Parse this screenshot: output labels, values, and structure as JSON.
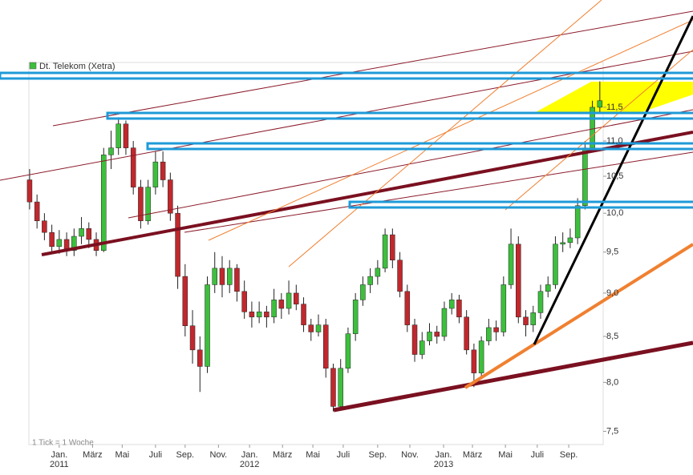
{
  "chart_data": {
    "type": "candlestick",
    "legend": "Dt. Telekom (Xetra)",
    "legend_color": "#3dbf3d",
    "footnote": "1 Tick = 1 Woche",
    "up_color": "#3dbf3d",
    "down_color": "#c0282d",
    "log_scale": true,
    "ylim": [
      7.37,
      12.2
    ],
    "yticks": [
      {
        "value": 7.5,
        "label": "7,5"
      },
      {
        "value": 8,
        "label": "8,0"
      },
      {
        "value": 8.5,
        "label": "8,5"
      },
      {
        "value": 9,
        "label": "9,0"
      },
      {
        "value": 9.5,
        "label": "9,5"
      },
      {
        "value": 10,
        "label": "10,0"
      },
      {
        "value": 10.5,
        "label": "10,5"
      },
      {
        "value": 11,
        "label": "11,0"
      },
      {
        "value": 11.5,
        "label": "11,5"
      }
    ],
    "xlim": [
      -0.2,
      154.9
    ],
    "xticks": [
      {
        "value": 8,
        "label": "Jan."
      },
      {
        "value": 17,
        "label": "März"
      },
      {
        "value": 25,
        "label": "Mai"
      },
      {
        "value": 34,
        "label": "Juli"
      },
      {
        "value": 42,
        "label": "Sep."
      },
      {
        "value": 51,
        "label": "Nov."
      },
      {
        "value": 59.4,
        "label": "Jan."
      },
      {
        "value": 68.3,
        "label": "März"
      },
      {
        "value": 76.5,
        "label": "Mai"
      },
      {
        "value": 84.7,
        "label": "Juli"
      },
      {
        "value": 94,
        "label": "Sep."
      },
      {
        "value": 102.7,
        "label": "Nov."
      },
      {
        "value": 111.8,
        "label": "Jan."
      },
      {
        "value": 119.6,
        "label": "März"
      },
      {
        "value": 128.5,
        "label": "Mai"
      },
      {
        "value": 137.1,
        "label": "Juli"
      },
      {
        "value": 145.6,
        "label": "Sep."
      }
    ],
    "years": [
      {
        "value": 8,
        "label": "2011"
      },
      {
        "value": 59.4,
        "label": "2012"
      },
      {
        "value": 111.8,
        "label": "2013"
      }
    ],
    "x": [
      0,
      2,
      4,
      6,
      8,
      10,
      12,
      14,
      16,
      18,
      20,
      22,
      24,
      26,
      28,
      30,
      32,
      34,
      36,
      38,
      40,
      42,
      44,
      46,
      48,
      50,
      52,
      54,
      56,
      58,
      60,
      62,
      64,
      66,
      68,
      70,
      72,
      74,
      76,
      78,
      80,
      82,
      84,
      86,
      88,
      90,
      92,
      94,
      96,
      98,
      100,
      102,
      104,
      106,
      108,
      110,
      112,
      114,
      116,
      118,
      120,
      122,
      124,
      126,
      128,
      130,
      132,
      134,
      136,
      138,
      140,
      142,
      144,
      146,
      148,
      150,
      152,
      154
    ],
    "ohlc": [
      [
        10.45,
        10.6,
        10.05,
        10.15
      ],
      [
        10.15,
        10.25,
        9.8,
        9.9
      ],
      [
        9.9,
        10.0,
        9.65,
        9.75
      ],
      [
        9.75,
        9.85,
        9.5,
        9.57
      ],
      [
        9.57,
        9.78,
        9.48,
        9.66
      ],
      [
        9.66,
        9.75,
        9.45,
        9.52
      ],
      [
        9.52,
        9.8,
        9.45,
        9.7
      ],
      [
        9.7,
        9.95,
        9.6,
        9.8
      ],
      [
        9.8,
        9.88,
        9.55,
        9.66
      ],
      [
        9.66,
        9.75,
        9.45,
        9.52
      ],
      [
        9.52,
        10.9,
        9.5,
        10.8
      ],
      [
        10.8,
        11.15,
        10.6,
        10.9
      ],
      [
        10.9,
        11.35,
        10.8,
        11.25
      ],
      [
        11.25,
        11.3,
        10.8,
        10.9
      ],
      [
        10.9,
        11.0,
        10.25,
        10.35
      ],
      [
        10.35,
        10.45,
        9.8,
        9.9
      ],
      [
        9.9,
        10.45,
        9.85,
        10.35
      ],
      [
        10.35,
        10.85,
        10.25,
        10.7
      ],
      [
        10.7,
        10.85,
        10.35,
        10.45
      ],
      [
        10.45,
        10.55,
        9.9,
        10.0
      ],
      [
        10.0,
        10.1,
        9.05,
        9.2
      ],
      [
        9.2,
        9.35,
        8.5,
        8.62
      ],
      [
        8.62,
        8.8,
        8.2,
        8.35
      ],
      [
        8.35,
        8.5,
        7.9,
        8.17
      ],
      [
        8.17,
        9.2,
        8.1,
        9.1
      ],
      [
        9.1,
        9.5,
        9.0,
        9.3
      ],
      [
        9.3,
        9.45,
        8.95,
        9.1
      ],
      [
        9.1,
        9.4,
        9.0,
        9.3
      ],
      [
        9.3,
        9.35,
        8.9,
        9.02
      ],
      [
        9.02,
        9.15,
        8.7,
        8.78
      ],
      [
        8.78,
        8.9,
        8.6,
        8.72
      ],
      [
        8.72,
        8.9,
        8.65,
        8.78
      ],
      [
        8.78,
        8.85,
        8.6,
        8.72
      ],
      [
        8.72,
        9.05,
        8.65,
        8.92
      ],
      [
        8.92,
        9.0,
        8.7,
        8.82
      ],
      [
        8.82,
        9.15,
        8.75,
        9.0
      ],
      [
        9.0,
        9.1,
        8.8,
        8.87
      ],
      [
        8.87,
        8.95,
        8.55,
        8.63
      ],
      [
        8.63,
        8.7,
        8.45,
        8.55
      ],
      [
        8.55,
        8.75,
        8.5,
        8.63
      ],
      [
        8.63,
        8.7,
        8.05,
        8.15
      ],
      [
        8.15,
        8.2,
        7.7,
        7.75
      ],
      [
        7.75,
        8.25,
        7.72,
        8.15
      ],
      [
        8.15,
        8.6,
        8.1,
        8.53
      ],
      [
        8.53,
        9.0,
        8.45,
        8.92
      ],
      [
        8.92,
        9.2,
        8.85,
        9.1
      ],
      [
        9.1,
        9.3,
        9.0,
        9.2
      ],
      [
        9.2,
        9.4,
        9.1,
        9.3
      ],
      [
        9.3,
        9.8,
        9.25,
        9.72
      ],
      [
        9.72,
        9.8,
        9.3,
        9.4
      ],
      [
        9.4,
        9.5,
        8.95,
        9.02
      ],
      [
        9.02,
        9.1,
        8.55,
        8.63
      ],
      [
        8.63,
        8.7,
        8.22,
        8.3
      ],
      [
        8.3,
        8.55,
        8.25,
        8.45
      ],
      [
        8.45,
        8.65,
        8.4,
        8.55
      ],
      [
        8.55,
        8.62,
        8.42,
        8.5
      ],
      [
        8.5,
        8.9,
        8.45,
        8.82
      ],
      [
        8.82,
        9.0,
        8.75,
        8.92
      ],
      [
        8.92,
        8.98,
        8.65,
        8.72
      ],
      [
        8.72,
        8.8,
        8.3,
        8.35
      ],
      [
        8.35,
        8.42,
        7.95,
        8.1
      ],
      [
        8.1,
        8.5,
        8.05,
        8.45
      ],
      [
        8.45,
        8.7,
        8.4,
        8.6
      ],
      [
        8.6,
        8.68,
        8.45,
        8.55
      ],
      [
        8.55,
        9.2,
        8.5,
        9.1
      ],
      [
        9.1,
        9.8,
        9.05,
        9.6
      ],
      [
        9.6,
        9.7,
        8.65,
        8.72
      ],
      [
        8.72,
        8.8,
        8.5,
        8.63
      ],
      [
        8.63,
        8.85,
        8.55,
        8.77
      ],
      [
        8.77,
        9.1,
        8.7,
        9.02
      ],
      [
        9.02,
        9.2,
        8.95,
        9.1
      ],
      [
        9.1,
        9.7,
        9.05,
        9.6
      ],
      [
        9.6,
        9.75,
        9.5,
        9.62
      ],
      [
        9.62,
        9.8,
        9.55,
        9.68
      ],
      [
        9.68,
        10.2,
        9.6,
        10.1
      ],
      [
        10.1,
        11.0,
        10.05,
        10.9
      ],
      [
        10.9,
        11.6,
        10.85,
        11.5
      ],
      [
        11.5,
        11.9,
        11.4,
        11.6
      ]
    ]
  }
}
